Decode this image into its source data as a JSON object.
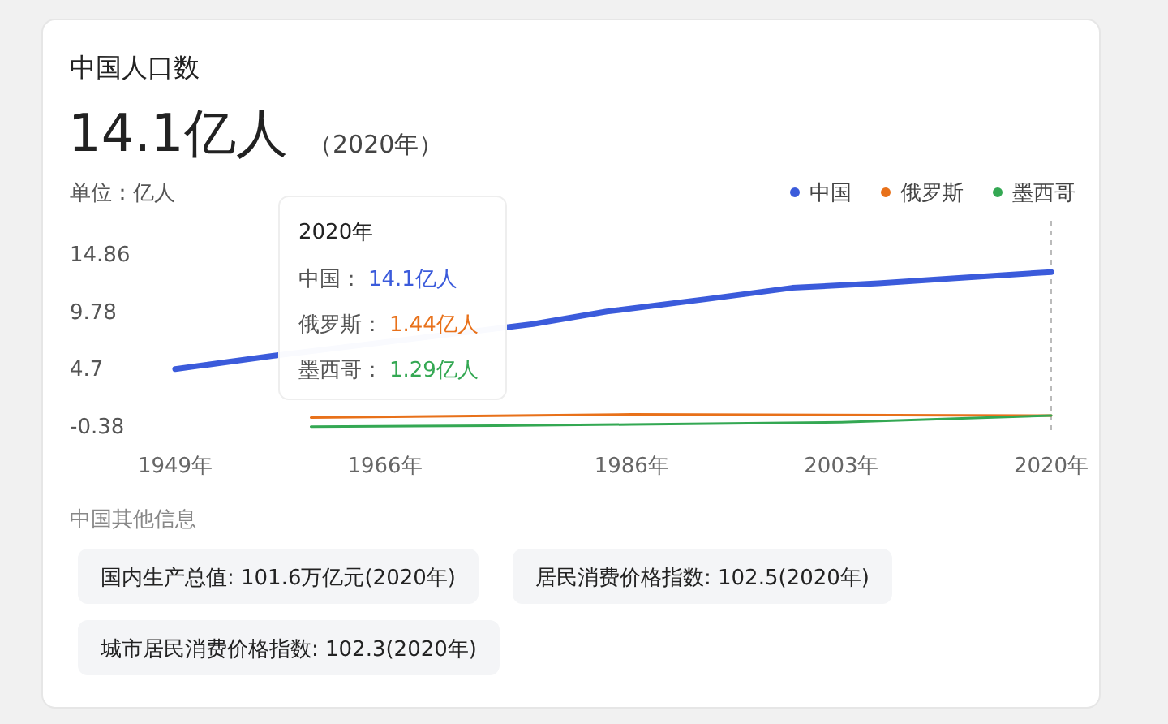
{
  "chart_data": {
    "type": "line",
    "title": "中国人口数",
    "subtitle": "14.1亿人",
    "ylabel": "单位：亿人",
    "xlim": [
      1949,
      2020
    ],
    "ylim": [
      -0.8,
      14.86
    ],
    "xticks": [
      {
        "value": 1949,
        "label": "1949年"
      },
      {
        "value": 1966,
        "label": "1966年"
      },
      {
        "value": 1986,
        "label": "1986年"
      },
      {
        "value": 2003,
        "label": "2003年"
      },
      {
        "value": 2020,
        "label": "2020年"
      }
    ],
    "yticks": [
      -0.38,
      4.7,
      9.78,
      14.86
    ],
    "grid": false,
    "legend": "top right",
    "line_style": "solid",
    "series": [
      {
        "name": "中国",
        "color": "#3b5bdb",
        "x": [
          1949,
          1957,
          1978,
          1984,
          1992,
          1999,
          2006,
          2013,
          2020
        ],
        "values": [
          4.6,
          5.8,
          8.6,
          9.7,
          10.8,
          11.8,
          12.2,
          12.7,
          13.2
        ]
      },
      {
        "name": "俄罗斯",
        "color": "#e8711a",
        "x": [
          1960,
          1986,
          2020
        ],
        "values": [
          0.3,
          0.6,
          0.5
        ]
      },
      {
        "name": "墨西哥",
        "color": "#34a853",
        "x": [
          1960,
          1975,
          1986,
          2003,
          2020
        ],
        "values": [
          -0.5,
          -0.4,
          -0.3,
          -0.1,
          0.5
        ]
      }
    ],
    "ref_lines": [
      {
        "axis": "x",
        "value": 2020,
        "color": "#bbbbbb",
        "line_style": "dashed"
      }
    ],
    "annotations": [
      "（2020年）",
      "2020年",
      "中国：",
      "14.1亿人",
      "俄罗斯：",
      "1.44亿人",
      "墨西哥：",
      "1.29亿人",
      "中国其他信息",
      "国内生产总值: 101.6万亿元(2020年)",
      "居民消费价格指数: 102.5(2020年)",
      "城市居民消费价格指数: 102.3(2020年)"
    ]
  }
}
